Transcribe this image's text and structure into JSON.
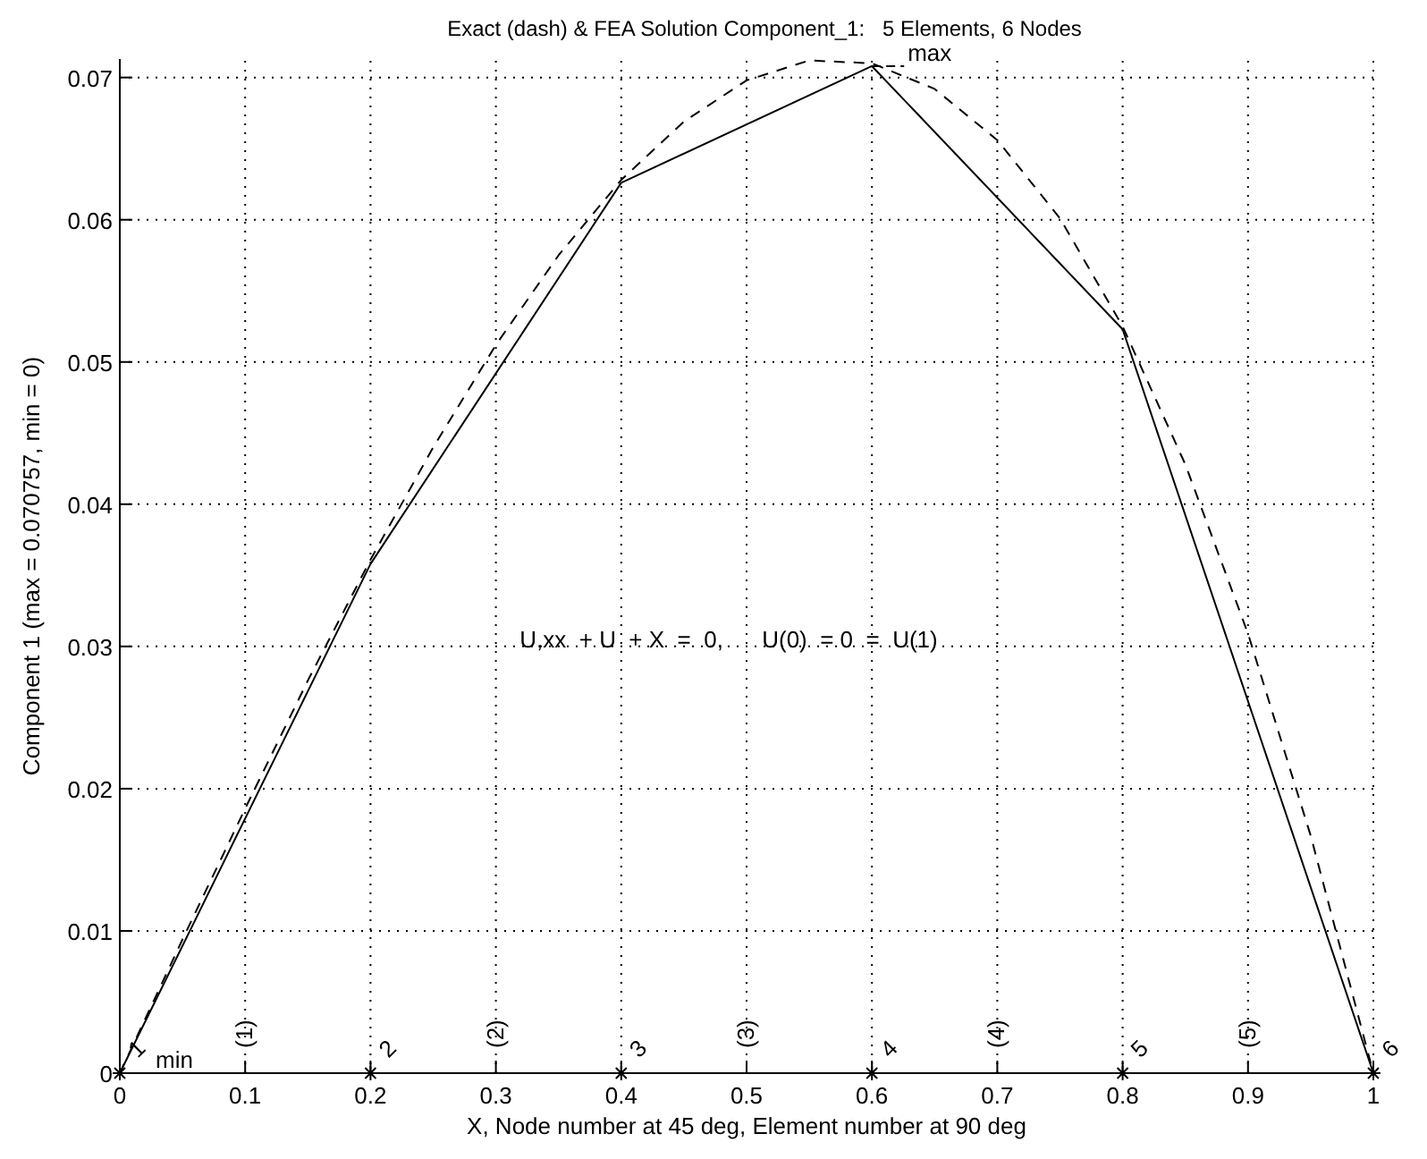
{
  "chart_data": {
    "type": "line",
    "title": "Exact (dash) & FEA Solution Component_1:   5 Elements, 6 Nodes",
    "xlabel": "X, Node number at 45 deg, Element number at 90 deg",
    "ylabel": "Component 1 (max = 0.070757, min = 0)",
    "xlim": [
      0,
      1
    ],
    "xticks": [
      0,
      0.1,
      0.2,
      0.3,
      0.4,
      0.5,
      0.6,
      0.7,
      0.8,
      0.9,
      1
    ],
    "ylim": [
      0,
      0.0713
    ],
    "yticks": [
      0,
      0.01,
      0.02,
      0.03,
      0.04,
      0.05,
      0.06,
      0.07
    ],
    "grid": true,
    "series": [
      {
        "color": "#000000",
        "line_style": "dashed",
        "marker": "none",
        "x": [
          0,
          0.05,
          0.1,
          0.15,
          0.2,
          0.25,
          0.3,
          0.35,
          0.4,
          0.45,
          0.5,
          0.55,
          0.6,
          0.65,
          0.7,
          0.75,
          0.8,
          0.85,
          0.9,
          0.95,
          1
        ],
        "values": [
          0,
          0.0094,
          0.0186,
          0.0276,
          0.0361,
          0.044,
          0.0512,
          0.0575,
          0.0628,
          0.0669,
          0.0698,
          0.0712,
          0.071,
          0.0692,
          0.0656,
          0.0601,
          0.0525,
          0.0428,
          0.0309,
          0.0167,
          0
        ]
      },
      {
        "color": "#000000",
        "line_style": "solid",
        "marker": "none",
        "x": [
          0,
          0.2,
          0.4,
          0.6,
          0.8,
          1
        ],
        "values": [
          0,
          0.0358,
          0.0626,
          0.0708,
          0.0523,
          0
        ]
      },
      {
        "type": "scatter",
        "color": "#000000",
        "marker": "cross",
        "x": [
          0,
          0.2,
          0.4,
          0.6,
          0.8,
          1
        ],
        "values": [
          0,
          0,
          0,
          0,
          0,
          0
        ]
      }
    ],
    "annotations": [
      {
        "text": "1",
        "x": 0,
        "y": 0
      },
      {
        "text": "2",
        "x": 0.2,
        "y": 0
      },
      {
        "text": "3",
        "x": 0.4,
        "y": 0
      },
      {
        "text": "4",
        "x": 0.6,
        "y": 0
      },
      {
        "text": "5",
        "x": 0.8,
        "y": 0
      },
      {
        "text": "6",
        "x": 1,
        "y": 0
      },
      "(1)",
      "(2)",
      "(3)",
      "(4)",
      "(5)",
      {
        "text": "max",
        "x": 0.6,
        "y": 0.0708
      },
      {
        "text": "min",
        "x": 0,
        "y": 0
      },
      "U,xx  + U  + X  =  0,      U(0)  = 0  =  U(1)"
    ]
  }
}
